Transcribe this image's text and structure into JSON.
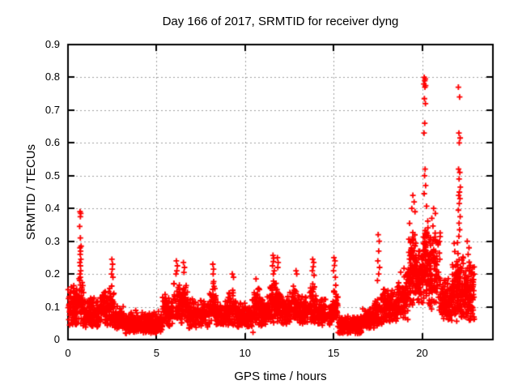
{
  "title": "Day 166 of 2017, SRMTID for receiver dyng",
  "colors": {
    "background": "#ffffff",
    "axis": "#000000",
    "grid": "#a0a0a0",
    "marker": "#ff0000"
  },
  "chart_data": {
    "type": "scatter",
    "title": "Day 166 of 2017, SRMTID for receiver dyng",
    "xlabel": "GPS time / hours",
    "ylabel": "SRMTID / TECUs",
    "xlim": [
      0,
      24
    ],
    "ylim": [
      0,
      0.9
    ],
    "xticks": [
      0,
      5,
      10,
      15,
      20
    ],
    "xtick_labels": [
      "0",
      "5",
      "10",
      "15",
      "20"
    ],
    "yticks": [
      0,
      0.1,
      0.2,
      0.3,
      0.4,
      0.5,
      0.6,
      0.7,
      0.8,
      0.9
    ],
    "ytick_labels": [
      "0",
      "0.1",
      "0.2",
      "0.3",
      "0.4",
      "0.5",
      "0.6",
      "0.7",
      "0.8",
      "0.9"
    ],
    "grid": true,
    "legend": "none",
    "marker": {
      "shape": "plus",
      "color": "#ff0000",
      "size": 7,
      "stroke": 1.8
    },
    "series": [
      {
        "name": "SRMTID",
        "generator": {
          "seed": 7,
          "skew": 1.25,
          "segments": [
            [
              0.0,
              0.55,
              90,
              0.04,
              0.17
            ],
            [
              0.55,
              0.9,
              50,
              0.04,
              0.2
            ],
            [
              0.9,
              1.8,
              120,
              0.035,
              0.13
            ],
            [
              1.8,
              2.35,
              80,
              0.04,
              0.165
            ],
            [
              2.35,
              2.6,
              40,
              0.04,
              0.18
            ],
            [
              2.6,
              3.2,
              85,
              0.03,
              0.11
            ],
            [
              3.2,
              5.35,
              300,
              0.018,
              0.09
            ],
            [
              5.35,
              5.95,
              85,
              0.04,
              0.15
            ],
            [
              5.95,
              6.75,
              110,
              0.05,
              0.19
            ],
            [
              6.75,
              8.0,
              160,
              0.035,
              0.13
            ],
            [
              8.0,
              8.35,
              50,
              0.05,
              0.19
            ],
            [
              8.35,
              9.0,
              85,
              0.04,
              0.12
            ],
            [
              9.0,
              9.5,
              70,
              0.04,
              0.16
            ],
            [
              9.5,
              10.4,
              120,
              0.035,
              0.12
            ],
            [
              10.4,
              10.9,
              70,
              0.04,
              0.17
            ],
            [
              10.9,
              11.4,
              70,
              0.04,
              0.14
            ],
            [
              11.4,
              12.0,
              85,
              0.05,
              0.19
            ],
            [
              12.0,
              12.6,
              80,
              0.04,
              0.15
            ],
            [
              12.6,
              13.1,
              70,
              0.05,
              0.17
            ],
            [
              13.1,
              13.6,
              70,
              0.04,
              0.14
            ],
            [
              13.6,
              14.1,
              70,
              0.05,
              0.18
            ],
            [
              14.1,
              14.9,
              100,
              0.04,
              0.13
            ],
            [
              14.9,
              15.25,
              50,
              0.05,
              0.17
            ],
            [
              15.25,
              16.6,
              210,
              0.018,
              0.075
            ],
            [
              16.6,
              17.3,
              95,
              0.03,
              0.1
            ],
            [
              17.3,
              17.75,
              60,
              0.04,
              0.15
            ],
            [
              17.75,
              18.6,
              115,
              0.05,
              0.17
            ],
            [
              18.6,
              19.2,
              95,
              0.06,
              0.22
            ],
            [
              19.2,
              19.75,
              110,
              0.08,
              0.38
            ],
            [
              19.75,
              20.05,
              60,
              0.1,
              0.3
            ],
            [
              20.05,
              20.35,
              70,
              0.12,
              0.42
            ],
            [
              20.35,
              21.05,
              120,
              0.08,
              0.35
            ],
            [
              21.05,
              21.7,
              100,
              0.05,
              0.2
            ],
            [
              21.7,
              22.35,
              130,
              0.05,
              0.3
            ],
            [
              22.35,
              22.95,
              115,
              0.04,
              0.26
            ]
          ]
        },
        "outliers": [
          [
            0.68,
            0.39
          ],
          [
            0.72,
            0.385
          ],
          [
            0.7,
            0.375
          ],
          [
            0.66,
            0.345
          ],
          [
            0.7,
            0.31
          ],
          [
            0.74,
            0.285
          ],
          [
            0.68,
            0.28
          ],
          [
            0.71,
            0.27
          ],
          [
            0.69,
            0.26
          ],
          [
            0.73,
            0.245
          ],
          [
            0.67,
            0.235
          ],
          [
            0.7,
            0.225
          ],
          [
            0.72,
            0.21
          ],
          [
            0.68,
            0.2
          ],
          [
            0.7,
            0.19
          ],
          [
            0.66,
            0.18
          ],
          [
            2.48,
            0.245
          ],
          [
            2.52,
            0.23
          ],
          [
            2.5,
            0.215
          ],
          [
            2.46,
            0.2
          ],
          [
            2.54,
            0.19
          ],
          [
            6.12,
            0.24
          ],
          [
            6.18,
            0.225
          ],
          [
            6.15,
            0.21
          ],
          [
            6.1,
            0.2
          ],
          [
            6.52,
            0.235
          ],
          [
            6.58,
            0.22
          ],
          [
            6.55,
            0.205
          ],
          [
            8.18,
            0.23
          ],
          [
            8.22,
            0.215
          ],
          [
            8.2,
            0.2
          ],
          [
            9.28,
            0.2
          ],
          [
            9.35,
            0.19
          ],
          [
            10.45,
            0.022
          ],
          [
            10.62,
            0.185
          ],
          [
            11.58,
            0.257
          ],
          [
            11.62,
            0.248
          ],
          [
            11.6,
            0.238
          ],
          [
            11.55,
            0.225
          ],
          [
            11.65,
            0.21
          ],
          [
            11.6,
            0.2
          ],
          [
            11.83,
            0.25
          ],
          [
            11.87,
            0.235
          ],
          [
            11.85,
            0.22
          ],
          [
            12.88,
            0.21
          ],
          [
            12.92,
            0.2
          ],
          [
            13.82,
            0.245
          ],
          [
            13.88,
            0.235
          ],
          [
            13.85,
            0.222
          ],
          [
            13.8,
            0.21
          ],
          [
            13.9,
            0.196
          ],
          [
            15.02,
            0.25
          ],
          [
            15.08,
            0.24
          ],
          [
            15.05,
            0.226
          ],
          [
            15.0,
            0.21
          ],
          [
            15.1,
            0.19
          ],
          [
            17.52,
            0.32
          ],
          [
            17.58,
            0.3
          ],
          [
            17.55,
            0.27
          ],
          [
            17.5,
            0.24
          ],
          [
            17.6,
            0.22
          ],
          [
            17.55,
            0.2
          ],
          [
            17.48,
            0.18
          ],
          [
            19.48,
            0.44
          ],
          [
            19.55,
            0.42
          ],
          [
            19.42,
            0.4
          ],
          [
            19.6,
            0.39
          ],
          [
            20.12,
            0.8
          ],
          [
            20.18,
            0.795
          ],
          [
            20.15,
            0.79
          ],
          [
            20.1,
            0.78
          ],
          [
            20.2,
            0.775
          ],
          [
            20.16,
            0.77
          ],
          [
            20.13,
            0.735
          ],
          [
            20.19,
            0.72
          ],
          [
            20.15,
            0.66
          ],
          [
            20.11,
            0.63
          ],
          [
            20.17,
            0.52
          ],
          [
            20.14,
            0.5
          ],
          [
            20.2,
            0.47
          ],
          [
            20.12,
            0.445
          ],
          [
            20.65,
            0.4
          ],
          [
            20.75,
            0.385
          ],
          [
            20.55,
            0.37
          ],
          [
            22.05,
            0.77
          ],
          [
            22.12,
            0.74
          ],
          [
            22.08,
            0.63
          ],
          [
            22.15,
            0.615
          ],
          [
            22.1,
            0.6
          ],
          [
            22.06,
            0.52
          ],
          [
            22.13,
            0.51
          ],
          [
            22.09,
            0.49
          ],
          [
            22.16,
            0.465
          ],
          [
            22.11,
            0.45
          ],
          [
            22.07,
            0.44
          ],
          [
            22.14,
            0.43
          ],
          [
            22.1,
            0.415
          ],
          [
            22.05,
            0.395
          ],
          [
            22.15,
            0.375
          ],
          [
            22.09,
            0.355
          ],
          [
            22.12,
            0.335
          ],
          [
            22.08,
            0.315
          ],
          [
            22.55,
            0.3
          ],
          [
            22.65,
            0.28
          ],
          [
            22.6,
            0.26
          ]
        ]
      }
    ]
  }
}
